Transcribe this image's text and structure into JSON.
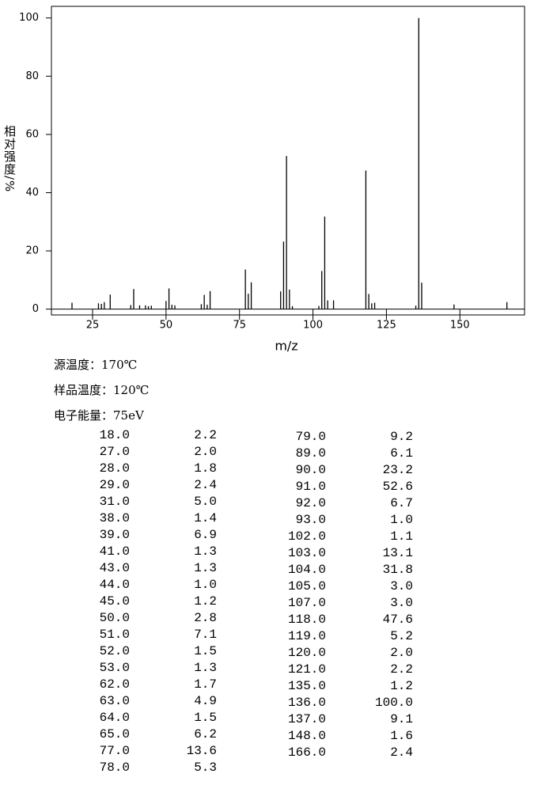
{
  "chart_data": {
    "type": "bar",
    "x_label": "m/z",
    "y_label": "相对强度/%",
    "x": [
      18,
      27,
      28,
      29,
      31,
      38,
      39,
      41,
      43,
      44,
      45,
      50,
      51,
      52,
      53,
      62,
      63,
      64,
      65,
      77,
      78,
      79,
      89,
      90,
      91,
      92,
      93,
      102,
      103,
      104,
      105,
      107,
      118,
      119,
      120,
      121,
      135,
      136,
      137,
      148,
      166
    ],
    "values": [
      2.2,
      2.0,
      1.8,
      2.4,
      5.0,
      1.4,
      6.9,
      1.3,
      1.3,
      1.0,
      1.2,
      2.8,
      7.1,
      1.5,
      1.3,
      1.7,
      4.9,
      1.5,
      6.2,
      13.6,
      5.3,
      9.2,
      6.1,
      23.2,
      52.6,
      6.7,
      1.0,
      1.1,
      13.1,
      31.8,
      3.0,
      3.0,
      47.6,
      5.2,
      2.0,
      2.2,
      1.2,
      100.0,
      9.1,
      1.6,
      2.4
    ],
    "color": "#000000",
    "xlim": [
      11,
      172
    ],
    "xticks": [
      25,
      50,
      75,
      100,
      125,
      150
    ],
    "ylim": [
      -2,
      104
    ],
    "yticks": [
      0,
      20,
      40,
      60,
      80,
      100
    ]
  },
  "conditions": [
    "源温度：170℃",
    "样品温度：120℃",
    "电子能量：75eV"
  ],
  "table": {
    "rows": [
      [
        "18.0",
        "2.2"
      ],
      [
        "27.0",
        "2.0"
      ],
      [
        "28.0",
        "1.8"
      ],
      [
        "29.0",
        "2.4"
      ],
      [
        "31.0",
        "5.0"
      ],
      [
        "38.0",
        "1.4"
      ],
      [
        "39.0",
        "6.9"
      ],
      [
        "41.0",
        "1.3"
      ],
      [
        "43.0",
        "1.3"
      ],
      [
        "44.0",
        "1.0"
      ],
      [
        "45.0",
        "1.2"
      ],
      [
        "50.0",
        "2.8"
      ],
      [
        "51.0",
        "7.1"
      ],
      [
        "52.0",
        "1.5"
      ],
      [
        "53.0",
        "1.3"
      ],
      [
        "62.0",
        "1.7"
      ],
      [
        "63.0",
        "4.9"
      ],
      [
        "64.0",
        "1.5"
      ],
      [
        "65.0",
        "6.2"
      ],
      [
        "77.0",
        "13.6"
      ],
      [
        "78.0",
        "5.3"
      ],
      [
        "79.0",
        "9.2"
      ],
      [
        "89.0",
        "6.1"
      ],
      [
        "90.0",
        "23.2"
      ],
      [
        "91.0",
        "52.6"
      ],
      [
        "92.0",
        "6.7"
      ],
      [
        "93.0",
        "1.0"
      ],
      [
        "102.0",
        "1.1"
      ],
      [
        "103.0",
        "13.1"
      ],
      [
        "104.0",
        "31.8"
      ],
      [
        "105.0",
        "3.0"
      ],
      [
        "107.0",
        "3.0"
      ],
      [
        "118.0",
        "47.6"
      ],
      [
        "119.0",
        "5.2"
      ],
      [
        "120.0",
        "2.0"
      ],
      [
        "121.0",
        "2.2"
      ],
      [
        "135.0",
        "1.2"
      ],
      [
        "136.0",
        "100.0"
      ],
      [
        "137.0",
        "9.1"
      ],
      [
        "148.0",
        "1.6"
      ],
      [
        "166.0",
        "2.4"
      ]
    ]
  }
}
